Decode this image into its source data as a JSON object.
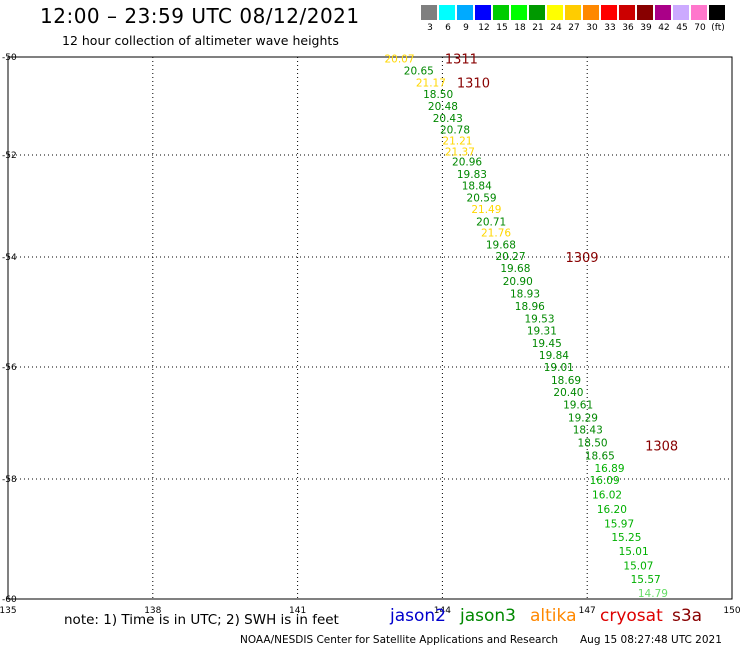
{
  "header": {
    "title": "12:00 – 23:59 UTC 08/12/2021",
    "subtitle": "12 hour collection of altimeter wave heights"
  },
  "colorbar": {
    "labels": [
      "3",
      "6",
      "9",
      "12",
      "15",
      "18",
      "21",
      "24",
      "27",
      "30",
      "33",
      "36",
      "39",
      "42",
      "45",
      "70",
      "(ft)"
    ],
    "colors": [
      "#7f7f7f",
      "#00ffff",
      "#00aaff",
      "#0000ff",
      "#00cc00",
      "#00ff00",
      "#009900",
      "#ffff00",
      "#ffcc00",
      "#ff8800",
      "#ff0000",
      "#cc0000",
      "#880000",
      "#aa0088",
      "#ccaaff",
      "#ff77cc",
      "#000000"
    ]
  },
  "axes": {
    "x_ticks": [
      "135",
      "138",
      "141",
      "144",
      "147",
      "150"
    ],
    "y_ticks": [
      "-50",
      "-52",
      "-54",
      "-56",
      "-58",
      "-60"
    ]
  },
  "footer": {
    "note": "note: 1) Time is in UTC; 2) SWH is in feet",
    "satellites": [
      {
        "name": "jason2",
        "color": "#0000cc"
      },
      {
        "name": "jason3",
        "color": "#008800"
      },
      {
        "name": "altika",
        "color": "#ff8800"
      },
      {
        "name": "cryosat",
        "color": "#dd0000"
      },
      {
        "name": "s3a",
        "color": "#880000"
      }
    ],
    "credit": "NOAA/NESDIS Center for Satellite Applications and Research",
    "timestamp": "Aug 15 08:27:48 UTC 2021"
  },
  "chart_data": {
    "type": "scatter",
    "x_range": [
      135,
      150
    ],
    "y_range": [
      -60,
      -50
    ],
    "pass_labels": [
      {
        "text": "1311",
        "lon": 144.05,
        "lat": -50.03,
        "color": "#880000"
      },
      {
        "text": "1310",
        "lon": 144.3,
        "lat": -50.52,
        "color": "#880000"
      },
      {
        "text": "1309",
        "lon": 146.55,
        "lat": -54.0,
        "color": "#880000"
      },
      {
        "text": "1308",
        "lon": 148.2,
        "lat": -57.4,
        "color": "#880000"
      }
    ],
    "points": [
      {
        "v": "20.07",
        "lon": 142.8,
        "lat": -50.03,
        "color": "#ffd700"
      },
      {
        "v": "20.65",
        "lon": 143.2,
        "lat": -50.28,
        "color": "#008800"
      },
      {
        "v": "21.17",
        "lon": 143.45,
        "lat": -50.52,
        "color": "#ffd700"
      },
      {
        "v": "18.50",
        "lon": 143.6,
        "lat": -50.76,
        "color": "#008800"
      },
      {
        "v": "20.48",
        "lon": 143.7,
        "lat": -51.0,
        "color": "#008800"
      },
      {
        "v": "20.43",
        "lon": 143.8,
        "lat": -51.24,
        "color": "#008800"
      },
      {
        "v": "20.78",
        "lon": 143.95,
        "lat": -51.48,
        "color": "#008800"
      },
      {
        "v": "21.21",
        "lon": 144.0,
        "lat": -51.7,
        "color": "#ffd700"
      },
      {
        "v": "21.37",
        "lon": 144.05,
        "lat": -51.93,
        "color": "#ffd700"
      },
      {
        "v": "20.96",
        "lon": 144.2,
        "lat": -52.13,
        "color": "#008800"
      },
      {
        "v": "19.83",
        "lon": 144.3,
        "lat": -52.37,
        "color": "#008800"
      },
      {
        "v": "18.84",
        "lon": 144.4,
        "lat": -52.6,
        "color": "#008800"
      },
      {
        "v": "20.59",
        "lon": 144.5,
        "lat": -52.83,
        "color": "#008800"
      },
      {
        "v": "21.49",
        "lon": 144.6,
        "lat": -53.06,
        "color": "#ffd700"
      },
      {
        "v": "20.71",
        "lon": 144.7,
        "lat": -53.3,
        "color": "#008800"
      },
      {
        "v": "21.76",
        "lon": 144.8,
        "lat": -53.52,
        "color": "#ffd700"
      },
      {
        "v": "19.68",
        "lon": 144.9,
        "lat": -53.75,
        "color": "#008800"
      },
      {
        "v": "20.27",
        "lon": 145.1,
        "lat": -53.98,
        "color": "#008800"
      },
      {
        "v": "19.68",
        "lon": 145.2,
        "lat": -54.2,
        "color": "#008800"
      },
      {
        "v": "20.90",
        "lon": 145.25,
        "lat": -54.44,
        "color": "#008800"
      },
      {
        "v": "18.93",
        "lon": 145.4,
        "lat": -54.66,
        "color": "#008800"
      },
      {
        "v": "18.96",
        "lon": 145.5,
        "lat": -54.89,
        "color": "#008800"
      },
      {
        "v": "19.53",
        "lon": 145.7,
        "lat": -55.12,
        "color": "#008800"
      },
      {
        "v": "19.31",
        "lon": 145.75,
        "lat": -55.34,
        "color": "#008800"
      },
      {
        "v": "19.45",
        "lon": 145.85,
        "lat": -55.56,
        "color": "#008800"
      },
      {
        "v": "19.84",
        "lon": 146.0,
        "lat": -55.78,
        "color": "#008800"
      },
      {
        "v": "19.01",
        "lon": 146.1,
        "lat": -56.0,
        "color": "#008800"
      },
      {
        "v": "18.69",
        "lon": 146.25,
        "lat": -56.23,
        "color": "#008800"
      },
      {
        "v": "20.40",
        "lon": 146.3,
        "lat": -56.45,
        "color": "#008800"
      },
      {
        "v": "19.61",
        "lon": 146.5,
        "lat": -56.67,
        "color": "#008800"
      },
      {
        "v": "19.29",
        "lon": 146.6,
        "lat": -56.9,
        "color": "#008800"
      },
      {
        "v": "18.43",
        "lon": 146.7,
        "lat": -57.12,
        "color": "#008800"
      },
      {
        "v": "18.50",
        "lon": 146.8,
        "lat": -57.35,
        "color": "#008800"
      },
      {
        "v": "18.65",
        "lon": 146.95,
        "lat": -57.58,
        "color": "#008800"
      },
      {
        "v": "16.89",
        "lon": 147.15,
        "lat": -57.8,
        "color": "#00b000"
      },
      {
        "v": "16.09",
        "lon": 147.05,
        "lat": -58.02,
        "color": "#00b000"
      },
      {
        "v": "16.02",
        "lon": 147.1,
        "lat": -58.26,
        "color": "#00b000"
      },
      {
        "v": "16.20",
        "lon": 147.2,
        "lat": -58.5,
        "color": "#00b000"
      },
      {
        "v": "15.97",
        "lon": 147.35,
        "lat": -58.74,
        "color": "#00b000"
      },
      {
        "v": "15.25",
        "lon": 147.5,
        "lat": -58.97,
        "color": "#00b000"
      },
      {
        "v": "15.01",
        "lon": 147.65,
        "lat": -59.2,
        "color": "#00b000"
      },
      {
        "v": "15.07",
        "lon": 147.75,
        "lat": -59.44,
        "color": "#00b000"
      },
      {
        "v": "15.57",
        "lon": 147.9,
        "lat": -59.67,
        "color": "#00b000"
      },
      {
        "v": "14.79",
        "lon": 148.05,
        "lat": -59.9,
        "color": "#66dd66"
      }
    ]
  }
}
